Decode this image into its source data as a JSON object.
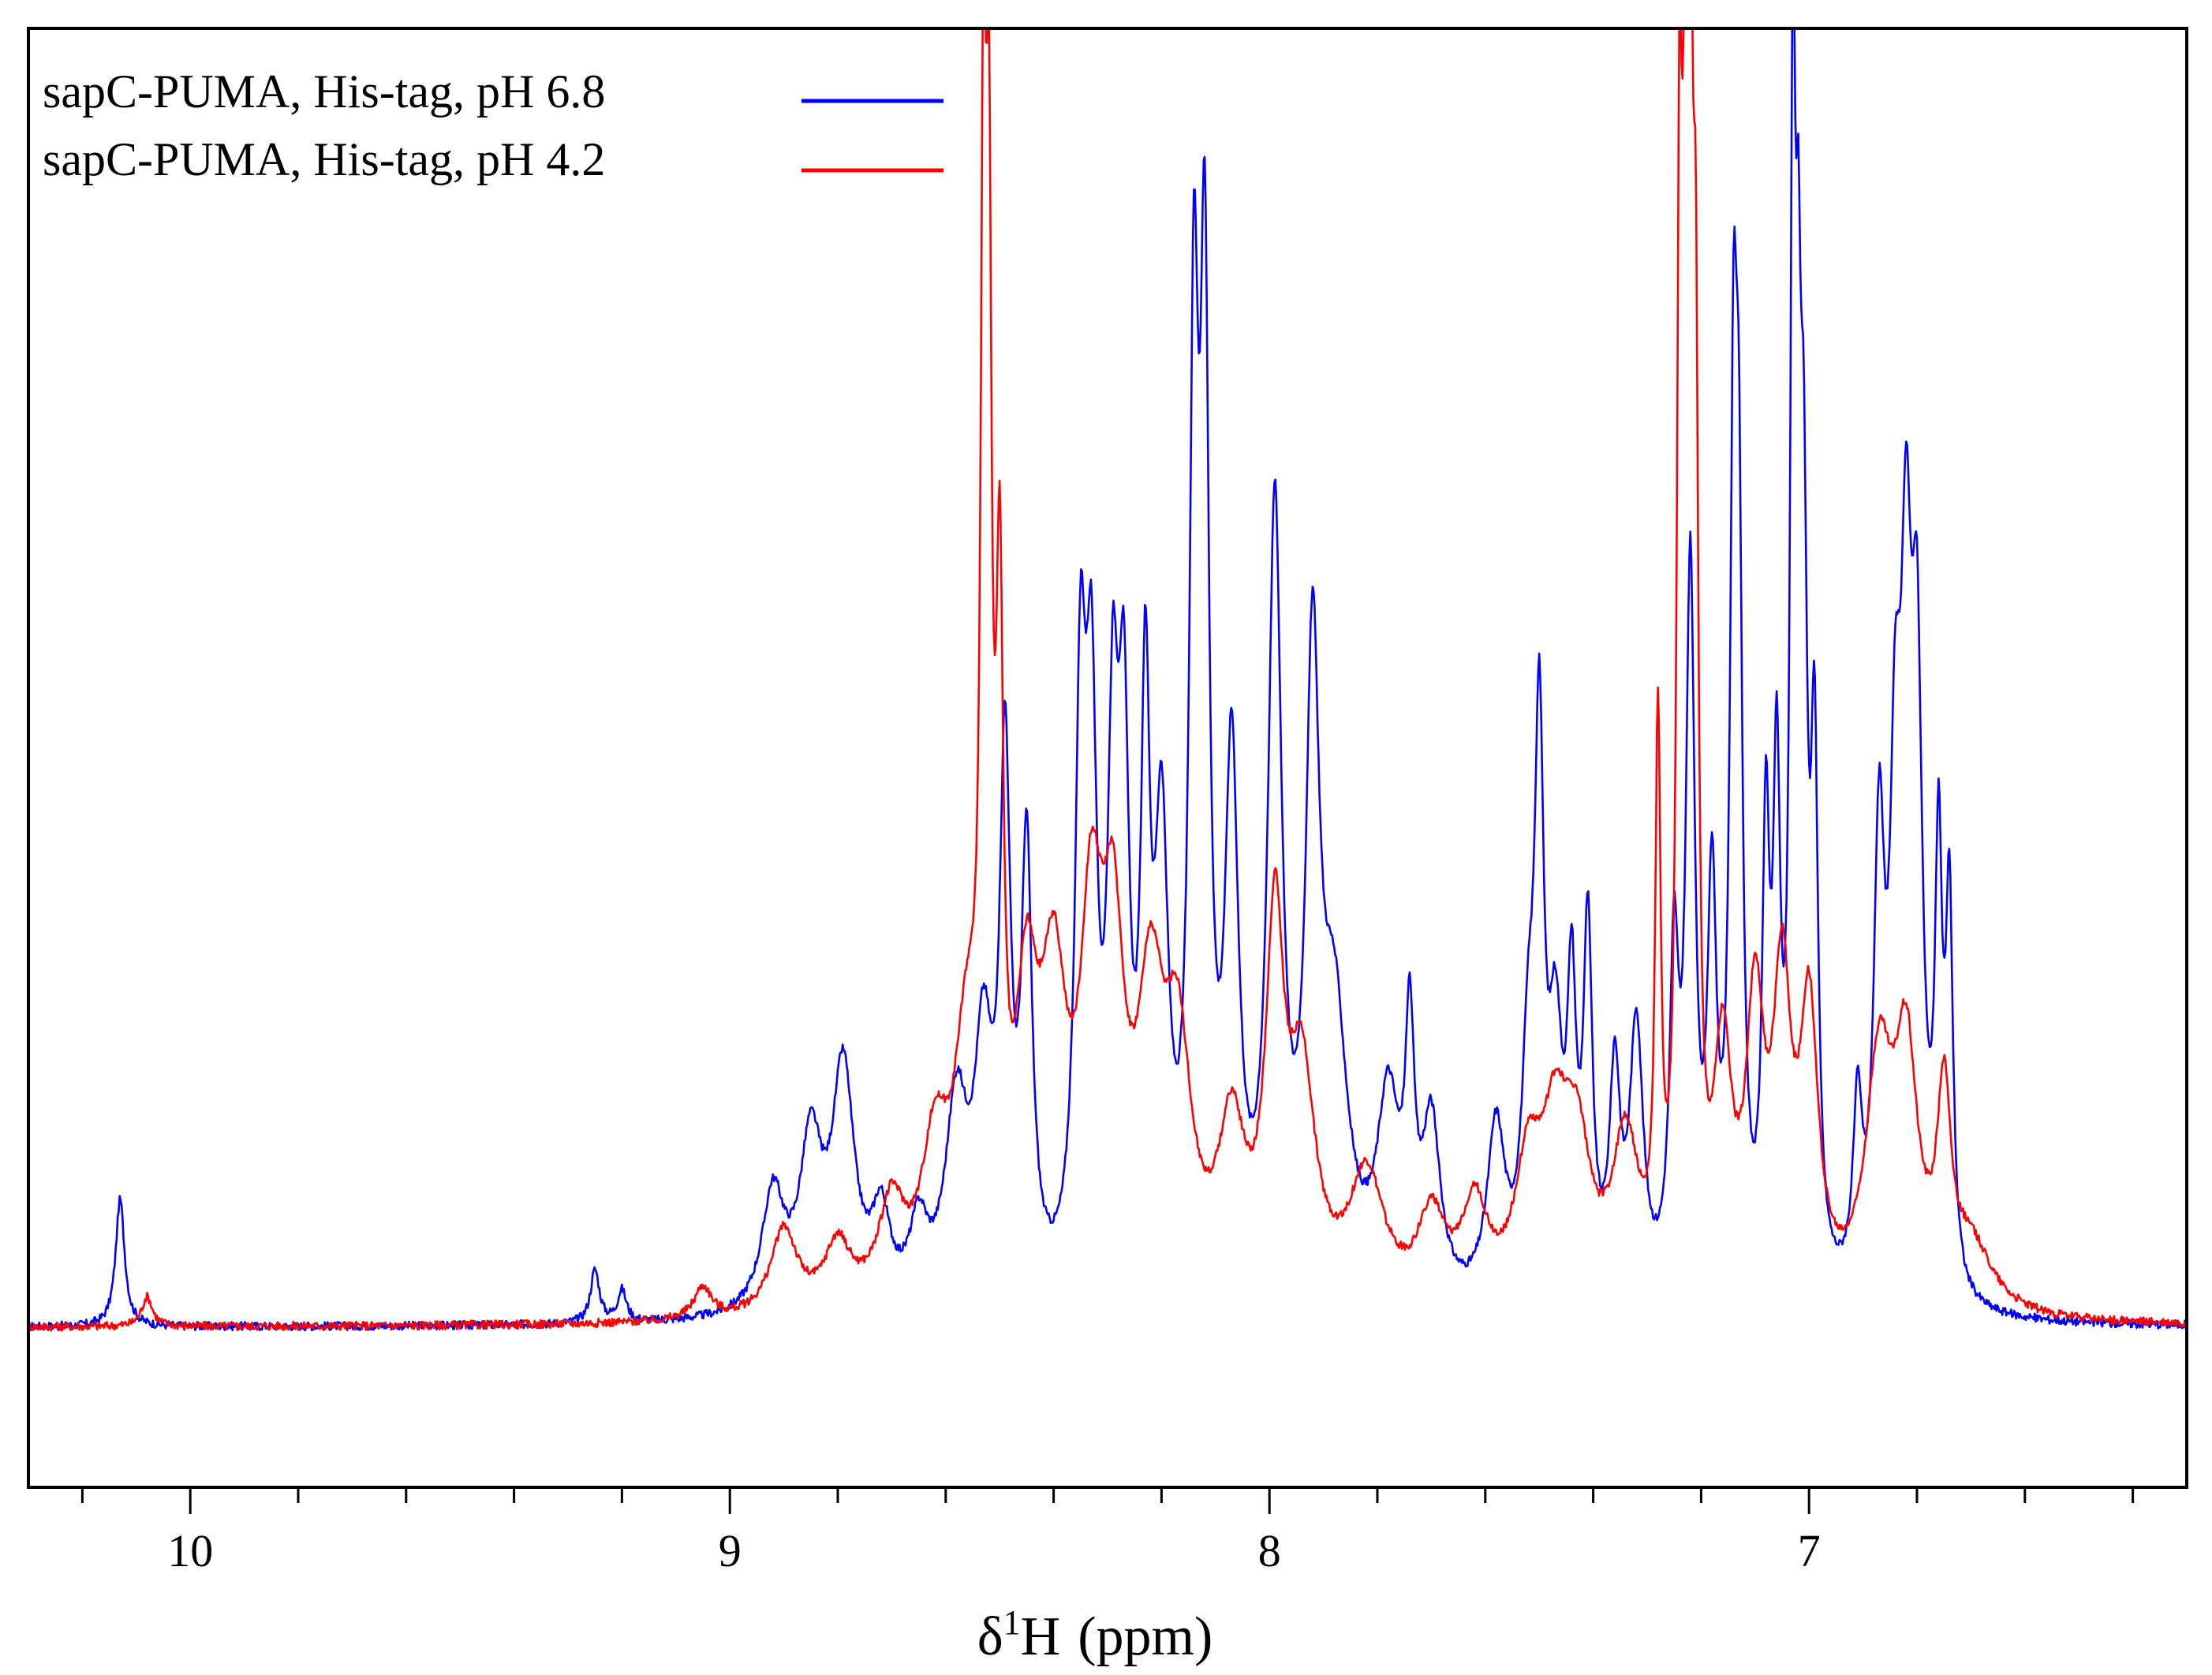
{
  "chart_data": {
    "type": "line",
    "title": "",
    "xlabel": {
      "delta": "δ",
      "superscript": "1",
      "nucleus": "H",
      "unit": "(ppm)"
    },
    "ylabel": "",
    "x_reversed": true,
    "xlim": [
      10.3,
      6.3
    ],
    "ylim": [
      -0.15,
      1.22
    ],
    "grid": false,
    "ticks": {
      "major": [
        10,
        9,
        8,
        7
      ],
      "major_labels": [
        "10",
        "9",
        "8",
        "7"
      ],
      "minor_step": 0.2
    },
    "legend": {
      "placement": "top-left",
      "entries": [
        {
          "label": "sapC-PUMA, His-tag, pH 6.8",
          "color": "#0000ff"
        },
        {
          "label": "sapC-PUMA, His-tag, pH 4.2",
          "color": "#ff0000"
        }
      ]
    },
    "series": [
      {
        "name": "sapC-PUMA, His-tag, pH 6.8",
        "color": "#0000ff",
        "baseline": 0.0,
        "peaks": [
          [
            10.13,
            0.12,
            0.01
          ],
          [
            9.25,
            0.05,
            0.01
          ],
          [
            9.2,
            0.03,
            0.01
          ],
          [
            8.92,
            0.11,
            0.025
          ],
          [
            8.85,
            0.15,
            0.025
          ],
          [
            8.79,
            0.22,
            0.025
          ],
          [
            8.72,
            0.08,
            0.02
          ],
          [
            8.65,
            0.07,
            0.02
          ],
          [
            8.58,
            0.18,
            0.025
          ],
          [
            8.53,
            0.22,
            0.02
          ],
          [
            8.49,
            0.48,
            0.012
          ],
          [
            8.45,
            0.4,
            0.012
          ],
          [
            8.35,
            0.52,
            0.012
          ],
          [
            8.33,
            0.47,
            0.012
          ],
          [
            8.29,
            0.45,
            0.012
          ],
          [
            8.27,
            0.45,
            0.012
          ],
          [
            8.23,
            0.5,
            0.01
          ],
          [
            8.2,
            0.4,
            0.015
          ],
          [
            8.14,
            0.82,
            0.01
          ],
          [
            8.12,
            0.85,
            0.01
          ],
          [
            8.07,
            0.48,
            0.015
          ],
          [
            7.99,
            0.72,
            0.015
          ],
          [
            7.92,
            0.55,
            0.015
          ],
          [
            7.88,
            0.25,
            0.03
          ],
          [
            7.78,
            0.18,
            0.025
          ],
          [
            7.74,
            0.22,
            0.01
          ],
          [
            7.7,
            0.16,
            0.02
          ],
          [
            7.58,
            0.16,
            0.02
          ],
          [
            7.52,
            0.2,
            0.015
          ],
          [
            7.5,
            0.48,
            0.01
          ],
          [
            7.47,
            0.22,
            0.015
          ],
          [
            7.44,
            0.26,
            0.01
          ],
          [
            7.41,
            0.33,
            0.01
          ],
          [
            7.36,
            0.2,
            0.012
          ],
          [
            7.32,
            0.25,
            0.015
          ],
          [
            7.25,
            0.3,
            0.01
          ],
          [
            7.22,
            0.66,
            0.01
          ],
          [
            7.18,
            0.36,
            0.01
          ],
          [
            7.14,
            0.72,
            0.008
          ],
          [
            7.13,
            0.58,
            0.008
          ],
          [
            7.08,
            0.4,
            0.008
          ],
          [
            7.06,
            0.44,
            0.008
          ],
          [
            7.03,
            1.0,
            0.006
          ],
          [
            7.02,
            0.55,
            0.006
          ],
          [
            7.01,
            0.58,
            0.008
          ],
          [
            6.99,
            0.47,
            0.008
          ],
          [
            6.91,
            0.16,
            0.01
          ],
          [
            6.87,
            0.4,
            0.012
          ],
          [
            6.84,
            0.4,
            0.012
          ],
          [
            6.82,
            0.55,
            0.012
          ],
          [
            6.8,
            0.52,
            0.012
          ],
          [
            6.76,
            0.38,
            0.008
          ],
          [
            6.74,
            0.35,
            0.008
          ]
        ]
      },
      {
        "name": "sapC-PUMA, His-tag, pH 4.2",
        "color": "#ff0000",
        "baseline": 0.0,
        "peaks": [
          [
            10.08,
            0.028,
            0.012
          ],
          [
            9.05,
            0.03,
            0.02
          ],
          [
            8.9,
            0.08,
            0.03
          ],
          [
            8.8,
            0.06,
            0.03
          ],
          [
            8.7,
            0.09,
            0.03
          ],
          [
            8.62,
            0.13,
            0.03
          ],
          [
            8.56,
            0.22,
            0.03
          ],
          [
            8.53,
            0.9,
            0.006
          ],
          [
            8.52,
            0.78,
            0.006
          ],
          [
            8.5,
            0.55,
            0.008
          ],
          [
            8.45,
            0.24,
            0.025
          ],
          [
            8.4,
            0.26,
            0.03
          ],
          [
            8.33,
            0.3,
            0.025
          ],
          [
            8.29,
            0.28,
            0.025
          ],
          [
            8.22,
            0.25,
            0.03
          ],
          [
            8.17,
            0.21,
            0.03
          ],
          [
            8.07,
            0.15,
            0.03
          ],
          [
            7.99,
            0.33,
            0.02
          ],
          [
            7.94,
            0.2,
            0.03
          ],
          [
            7.82,
            0.12,
            0.04
          ],
          [
            7.7,
            0.08,
            0.03
          ],
          [
            7.62,
            0.09,
            0.03
          ],
          [
            7.52,
            0.12,
            0.03
          ],
          [
            7.47,
            0.14,
            0.03
          ],
          [
            7.43,
            0.13,
            0.03
          ],
          [
            7.34,
            0.15,
            0.03
          ],
          [
            7.28,
            0.5,
            0.006
          ],
          [
            7.24,
            0.9,
            0.006
          ],
          [
            7.23,
            0.7,
            0.006
          ],
          [
            7.22,
            0.92,
            0.006
          ],
          [
            7.21,
            0.7,
            0.006
          ],
          [
            7.16,
            0.22,
            0.02
          ],
          [
            7.1,
            0.26,
            0.02
          ],
          [
            7.05,
            0.28,
            0.02
          ],
          [
            7.0,
            0.26,
            0.02
          ],
          [
            6.87,
            0.22,
            0.03
          ],
          [
            6.82,
            0.22,
            0.025
          ],
          [
            6.75,
            0.18,
            0.015
          ],
          [
            6.7,
            0.06,
            0.05
          ]
        ]
      }
    ]
  }
}
